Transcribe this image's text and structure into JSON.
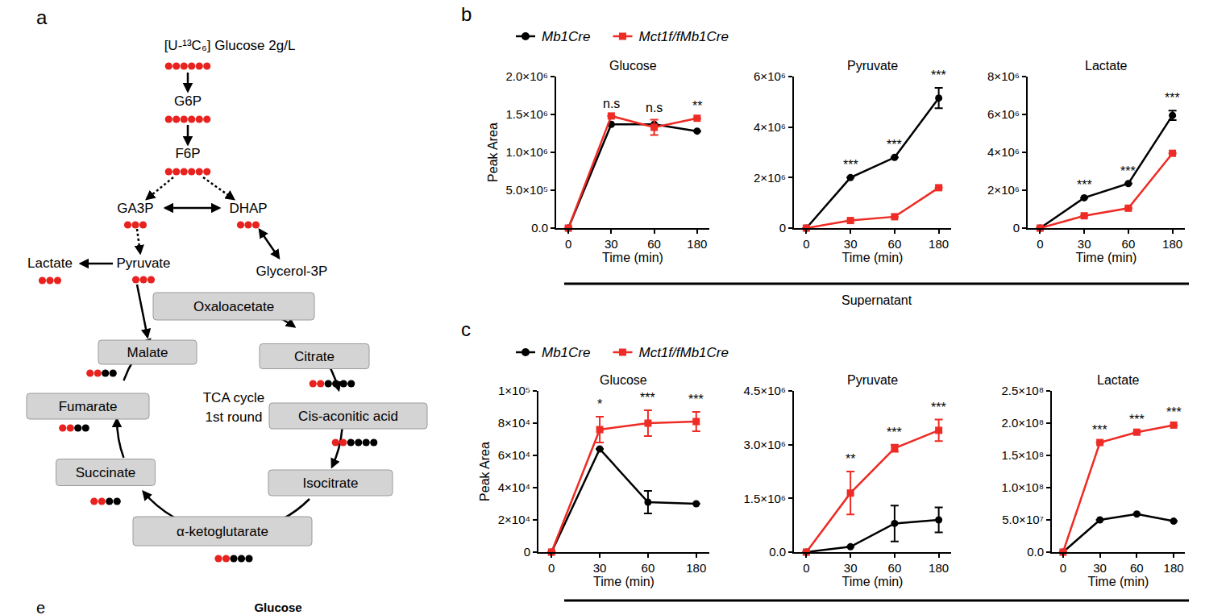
{
  "figure": {
    "panels": [
      {
        "label": "b",
        "group_label": "Supernatant"
      },
      {
        "label": "c"
      }
    ],
    "trailing_texts": {
      "label": "e",
      "title": "Glucose"
    }
  },
  "diagram": {
    "label": "a",
    "nodes": [
      {
        "text": "[U-¹³C₆] Glucose  2g/L",
        "red": 6,
        "black": 0
      },
      {
        "text": "G6P",
        "red": 6,
        "black": 0
      },
      {
        "text": "F6P",
        "red": 6,
        "black": 0
      },
      {
        "text": "GA3P",
        "red": 3,
        "black": 0
      },
      {
        "text": "DHAP",
        "red": 3,
        "black": 0
      },
      {
        "text": "Pyruvate",
        "red": 3,
        "black": 0
      },
      {
        "text": "Lactate",
        "red": 3,
        "black": 0
      },
      {
        "text": "Glycerol-3P",
        "red": 0,
        "black": 0
      },
      {
        "text": "Oxaloacetate",
        "red": 0,
        "black": 0
      },
      {
        "text": "Citrate",
        "red": 2,
        "black": 4
      },
      {
        "text": "Cis-aconitic acid",
        "red": 2,
        "black": 4
      },
      {
        "text": "Isocitrate",
        "red": 0,
        "black": 0
      },
      {
        "text": "α-ketoglutarate",
        "red": 2,
        "black": 3
      },
      {
        "text": "Succinate",
        "red": 2,
        "black": 2
      },
      {
        "text": "Fumarate",
        "red": 2,
        "black": 2
      },
      {
        "text": "Malate",
        "red": 2,
        "black": 2
      }
    ],
    "cycle_label": [
      "TCA cycle",
      "1st round"
    ]
  },
  "chart_data": [
    {
      "type": "line",
      "title": "Glucose",
      "x_label": "Time (min)",
      "y_label": "Peak Area",
      "categories": [
        "0",
        "30",
        "60",
        "180"
      ],
      "series": [
        {
          "name": "Mb1Cre",
          "color": "#000000",
          "marker": "circle",
          "values": [
            0,
            1370000,
            1370000,
            1280000
          ],
          "errors": [
            0,
            0,
            0,
            0
          ]
        },
        {
          "name": "Mct1f/fMb1Cre",
          "color": "#ee2b24",
          "marker": "square",
          "values": [
            0,
            1480000,
            1330000,
            1450000
          ],
          "errors": [
            0,
            0,
            100000,
            0
          ]
        }
      ],
      "ylim": [
        0,
        2000000
      ],
      "yticks": [
        {
          "value": 0,
          "label": "0.0"
        },
        {
          "value": 500000,
          "label": "5.0×10⁵"
        },
        {
          "value": 1000000,
          "label": "1.0×10⁶"
        },
        {
          "value": 1500000,
          "label": "1.5×10⁶"
        },
        {
          "value": 2000000,
          "label": "2.0×10⁶"
        }
      ],
      "annotations": [
        {
          "x": "30",
          "text": "n.s"
        },
        {
          "x": "60",
          "text": "n.s"
        },
        {
          "x": "180",
          "text": "**"
        }
      ],
      "grid": false
    },
    {
      "type": "line",
      "title": "Pyruvate",
      "x_label": "Time (min)",
      "categories": [
        "0",
        "30",
        "60",
        "180"
      ],
      "series": [
        {
          "name": "Mb1Cre",
          "color": "#000000",
          "marker": "circle",
          "values": [
            0,
            2000000,
            2800000,
            5150000
          ],
          "errors": [
            0,
            0,
            0,
            400000
          ]
        },
        {
          "name": "Mct1f/fMb1Cre",
          "color": "#ee2b24",
          "marker": "square",
          "values": [
            0,
            300000,
            450000,
            1600000
          ],
          "errors": [
            0,
            0,
            0,
            0
          ]
        }
      ],
      "ylim": [
        0,
        6000000
      ],
      "yticks": [
        0,
        {
          "value": 2000000,
          "label": "2×10⁶"
        },
        {
          "value": 4000000,
          "label": "4×10⁶"
        },
        {
          "value": 6000000,
          "label": "6×10⁶"
        }
      ],
      "annotations": [
        {
          "x": "30",
          "text": "***"
        },
        {
          "x": "60",
          "text": "***"
        },
        {
          "x": "180",
          "text": "***"
        }
      ],
      "grid": false
    },
    {
      "type": "line",
      "title": "Lactate",
      "x_label": "Time (min)",
      "categories": [
        "0",
        "30",
        "60",
        "180"
      ],
      "series": [
        {
          "name": "Mb1Cre",
          "color": "#000000",
          "marker": "circle",
          "values": [
            0,
            1600000,
            2350000,
            5950000
          ],
          "errors": [
            0,
            0,
            0,
            250000
          ]
        },
        {
          "name": "Mct1f/fMb1Cre",
          "color": "#ee2b24",
          "marker": "square",
          "values": [
            0,
            650000,
            1050000,
            3950000
          ],
          "errors": [
            0,
            0,
            0,
            0
          ]
        }
      ],
      "ylim": [
        0,
        8000000
      ],
      "yticks": [
        0,
        {
          "value": 2000000,
          "label": "2×10⁶"
        },
        {
          "value": 4000000,
          "label": "4×10⁶"
        },
        {
          "value": 6000000,
          "label": "6×10⁶"
        },
        {
          "value": 8000000,
          "label": "8×10⁶"
        }
      ],
      "annotations": [
        {
          "x": "30",
          "text": "***"
        },
        {
          "x": "60",
          "text": "***"
        },
        {
          "x": "180",
          "text": "***"
        }
      ],
      "grid": false
    },
    {
      "type": "line",
      "title": "Glucose",
      "x_label": "Time (min)",
      "y_label": "Peak Area",
      "categories": [
        "0",
        "30",
        "60",
        "180"
      ],
      "series": [
        {
          "name": "Mb1Cre",
          "color": "#000000",
          "marker": "circle",
          "values": [
            0,
            64000,
            31000,
            30000
          ],
          "errors": [
            0,
            0,
            7000,
            0
          ]
        },
        {
          "name": "Mct1f/fMb1Cre",
          "color": "#ee2b24",
          "marker": "square",
          "values": [
            0,
            76000,
            80000,
            81000
          ],
          "errors": [
            0,
            8000,
            8000,
            6000
          ]
        }
      ],
      "ylim": [
        0,
        100000
      ],
      "yticks": [
        0,
        {
          "value": 20000,
          "label": "2×10⁴"
        },
        {
          "value": 40000,
          "label": "4×10⁴"
        },
        {
          "value": 60000,
          "label": "6×10⁴"
        },
        {
          "value": 80000,
          "label": "8×10⁴"
        },
        {
          "value": 100000,
          "label": "1×10⁵"
        }
      ],
      "annotations": [
        {
          "x": "30",
          "text": "*"
        },
        {
          "x": "60",
          "text": "***"
        },
        {
          "x": "180",
          "text": "***"
        }
      ],
      "grid": false
    },
    {
      "type": "line",
      "title": "Pyruvate",
      "x_label": "Time (min)",
      "categories": [
        "0",
        "30",
        "60",
        "180"
      ],
      "series": [
        {
          "name": "Mb1Cre",
          "color": "#000000",
          "marker": "circle",
          "values": [
            0,
            150000,
            800000,
            900000
          ],
          "errors": [
            0,
            0,
            500000,
            350000
          ]
        },
        {
          "name": "Mct1f/fMb1Cre",
          "color": "#ee2b24",
          "marker": "square",
          "values": [
            0,
            1650000,
            2900000,
            3400000
          ],
          "errors": [
            0,
            600000,
            100000,
            300000
          ]
        }
      ],
      "ylim": [
        0,
        4500000
      ],
      "yticks": [
        {
          "value": 0,
          "label": "0.0"
        },
        {
          "value": 1500000,
          "label": "1.5×10⁶"
        },
        {
          "value": 3000000,
          "label": "3.0×10⁶"
        },
        {
          "value": 4500000,
          "label": "4.5×10⁶"
        }
      ],
      "annotations": [
        {
          "x": "30",
          "text": "**"
        },
        {
          "x": "60",
          "text": "***"
        },
        {
          "x": "180",
          "text": "***"
        }
      ],
      "grid": false
    },
    {
      "type": "line",
      "title": "Lactate",
      "x_label": "Time (min)",
      "categories": [
        "0",
        "30",
        "60",
        "180"
      ],
      "series": [
        {
          "name": "Mb1Cre",
          "color": "#000000",
          "marker": "circle",
          "values": [
            0,
            50000000,
            59000000,
            48000000
          ],
          "errors": [
            0,
            0,
            0,
            0
          ]
        },
        {
          "name": "Mct1f/fMb1Cre",
          "color": "#ee2b24",
          "marker": "square",
          "values": [
            0,
            170000000,
            186000000,
            197000000
          ],
          "errors": [
            0,
            0,
            0,
            0
          ]
        }
      ],
      "ylim": [
        0,
        250000000
      ],
      "yticks": [
        {
          "value": 0,
          "label": "0.0"
        },
        {
          "value": 50000000,
          "label": "5.0×10⁷"
        },
        {
          "value": 100000000,
          "label": "1.0×10⁸"
        },
        {
          "value": 150000000,
          "label": "1.5×10⁸"
        },
        {
          "value": 200000000,
          "label": "2.0×10⁸"
        },
        {
          "value": 250000000,
          "label": "2.5×10⁸"
        }
      ],
      "annotations": [
        {
          "x": "30",
          "text": "***"
        },
        {
          "x": "60",
          "text": "***"
        },
        {
          "x": "180",
          "text": "***"
        }
      ],
      "grid": false
    }
  ]
}
